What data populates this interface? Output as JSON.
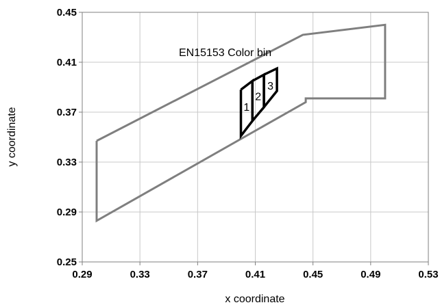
{
  "chart_data": {
    "type": "line",
    "title": "",
    "xlabel": "x coordinate",
    "ylabel": "y coordinate",
    "xlim": [
      0.29,
      0.53
    ],
    "ylim": [
      0.25,
      0.45
    ],
    "x_ticks": [
      "0.29",
      "0.33",
      "0.37",
      "0.41",
      "0.45",
      "0.49",
      "0.53"
    ],
    "y_ticks": [
      "0.25",
      "0.29",
      "0.33",
      "0.37",
      "0.41",
      "0.45"
    ],
    "grid": true,
    "annotations": [
      {
        "text": "EN15153 Color bin",
        "x": 0.357,
        "y": 0.415
      }
    ],
    "series": [
      {
        "color": "#7f7f7f",
        "points": [
          [
            0.3,
            0.347
          ],
          [
            0.443,
            0.432
          ],
          [
            0.5,
            0.44
          ],
          [
            0.5,
            0.381
          ],
          [
            0.445,
            0.381
          ],
          [
            0.445,
            0.378
          ],
          [
            0.3,
            0.283
          ],
          [
            0.3,
            0.347
          ]
        ]
      },
      {
        "label": "1",
        "color": "#000000",
        "points": [
          [
            0.4,
            0.388
          ],
          [
            0.408,
            0.395
          ],
          [
            0.408,
            0.363
          ],
          [
            0.4,
            0.351
          ],
          [
            0.4,
            0.388
          ]
        ]
      },
      {
        "label": "2",
        "color": "#000000",
        "points": [
          [
            0.408,
            0.395
          ],
          [
            0.416,
            0.4
          ],
          [
            0.416,
            0.374
          ],
          [
            0.408,
            0.363
          ],
          [
            0.408,
            0.395
          ]
        ]
      },
      {
        "label": "3",
        "color": "#000000",
        "points": [
          [
            0.416,
            0.4
          ],
          [
            0.425,
            0.405
          ],
          [
            0.425,
            0.387
          ],
          [
            0.416,
            0.374
          ],
          [
            0.416,
            0.4
          ]
        ]
      }
    ]
  }
}
